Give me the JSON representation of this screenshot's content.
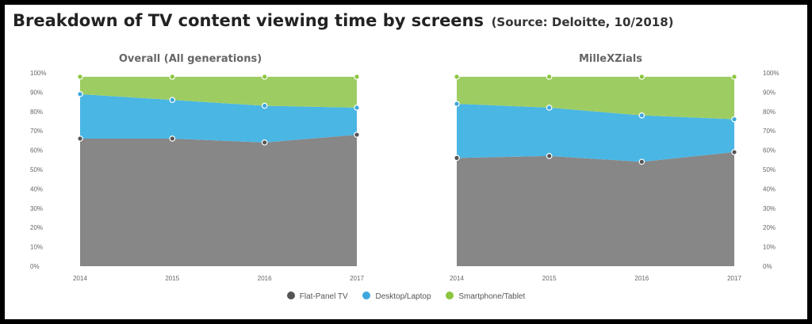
{
  "header": {
    "title": "Breakdown of TV content viewing time by screens",
    "source": "(Source: Deloitte, 10/2018)"
  },
  "legend": [
    {
      "label": "Flat-Panel TV",
      "color": "#555555"
    },
    {
      "label": "Desktop/Laptop",
      "color": "#3ea7dc"
    },
    {
      "label": "Smartphone/Tablet",
      "color": "#8cc63f"
    }
  ],
  "chart_data": [
    {
      "type": "area",
      "stacked": true,
      "title": "Overall (All generations)",
      "x": [
        "2014",
        "2015",
        "2016",
        "2017"
      ],
      "y_ticks": [
        "0%",
        "10%",
        "20%",
        "30%",
        "40%",
        "50%",
        "60%",
        "70%",
        "80%",
        "90%",
        "100%"
      ],
      "ylim": [
        0,
        100
      ],
      "y_axis_side": "left",
      "series": [
        {
          "name": "Flat-Panel TV",
          "values": [
            66,
            66,
            64,
            68
          ]
        },
        {
          "name": "Desktop/Laptop",
          "values": [
            23,
            20,
            19,
            14
          ]
        },
        {
          "name": "Smartphone/Tablet",
          "values": [
            9,
            12,
            15,
            16
          ]
        }
      ]
    },
    {
      "type": "area",
      "stacked": true,
      "title": "MilleXZials",
      "x": [
        "2014",
        "2015",
        "2016",
        "2017"
      ],
      "y_ticks": [
        "0%",
        "10%",
        "20%",
        "30%",
        "40%",
        "50%",
        "60%",
        "70%",
        "80%",
        "90%",
        "100%"
      ],
      "ylim": [
        0,
        100
      ],
      "y_axis_side": "right",
      "series": [
        {
          "name": "Flat-Panel TV",
          "values": [
            56,
            57,
            54,
            59
          ]
        },
        {
          "name": "Desktop/Laptop",
          "values": [
            28,
            25,
            24,
            17
          ]
        },
        {
          "name": "Smartphone/Tablet",
          "values": [
            14,
            16,
            20,
            22
          ]
        }
      ]
    }
  ]
}
